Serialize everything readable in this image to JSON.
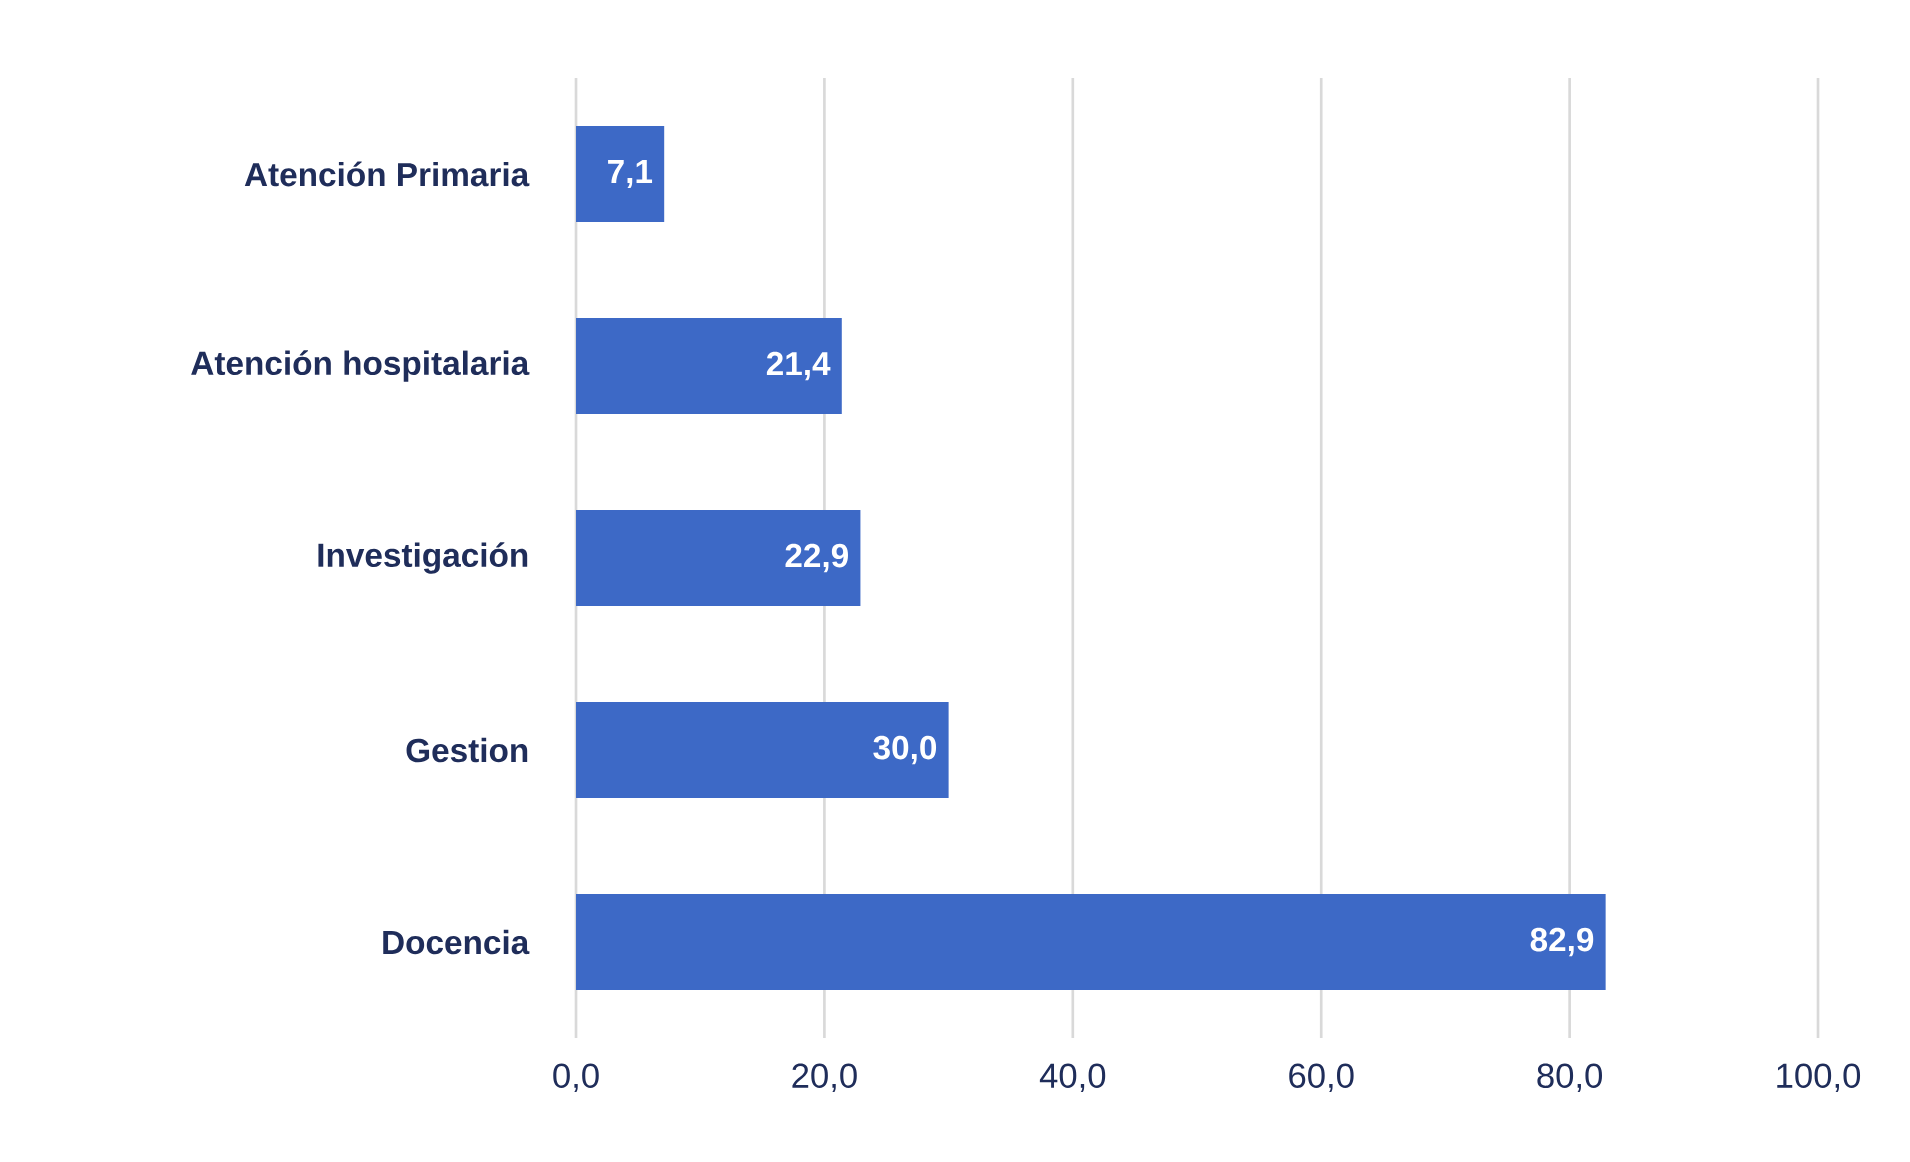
{
  "chart_data": {
    "type": "bar",
    "orientation": "horizontal",
    "categories": [
      "Atención Primaria",
      "Atención hospitalaria",
      "Investigación",
      "Gestion",
      "Docencia"
    ],
    "values": [
      7.1,
      21.4,
      22.9,
      30.0,
      82.9
    ],
    "value_labels": [
      "7,1",
      "21,4",
      "22,9",
      "30,0",
      "82,9"
    ],
    "color": "#3d69c6",
    "xlim": [
      0,
      100
    ],
    "xticks": [
      {
        "value": 0,
        "label": "0,0"
      },
      {
        "value": 20,
        "label": "20,0"
      },
      {
        "value": 40,
        "label": "40,0"
      },
      {
        "value": 60,
        "label": "60,0"
      },
      {
        "value": 80,
        "label": "80,0"
      },
      {
        "value": 100,
        "label": "100,0"
      }
    ],
    "grid": "x"
  }
}
